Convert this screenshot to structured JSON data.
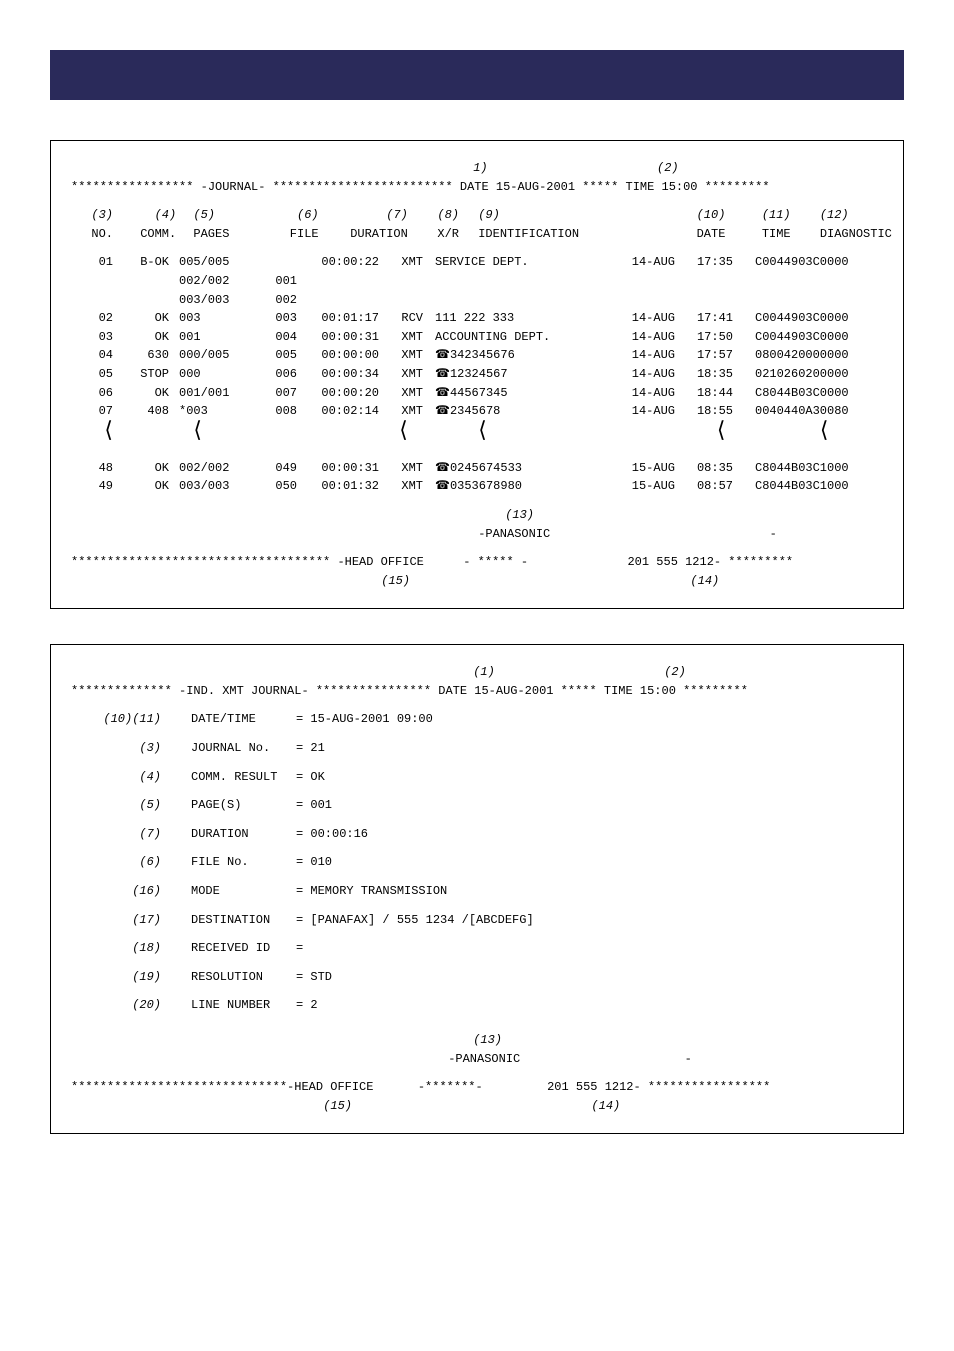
{
  "topbar_color": "#2a2a5a",
  "report1": {
    "title_marker": "1)",
    "title_marker2": "(2)",
    "header_line": "***************** -JOURNAL- ************************* DATE 15-AUG-2001 ***** TIME 15:00 *********",
    "col_ref": {
      "no": "(3)",
      "comm": "(4)",
      "pages": "(5)",
      "file": "(6)",
      "dur": "(7)",
      "xr": "(8)",
      "id": "(9)",
      "date": "(10)",
      "time": "(11)",
      "diag": "(12)"
    },
    "col_head": {
      "no": "NO.",
      "comm": "COMM.",
      "pages": "PAGES",
      "file": "FILE",
      "dur": "DURATION",
      "xr": "X/R",
      "id": "IDENTIFICATION",
      "date": "DATE",
      "time": "TIME",
      "diag": "DIAGNOSTIC"
    },
    "rows_a": [
      {
        "no": "01",
        "comm": "B-OK",
        "pages": "005/005",
        "file": "",
        "dur": "00:00:22",
        "xr": "XMT",
        "id_icon": "",
        "id": "SERVICE DEPT.",
        "date": "14-AUG",
        "time": "17:35",
        "diag": "C0044903C0000"
      },
      {
        "no": "",
        "comm": "",
        "pages": "002/002",
        "file": "001",
        "dur": "",
        "xr": "",
        "id_icon": "",
        "id": "",
        "date": "",
        "time": "",
        "diag": ""
      },
      {
        "no": "",
        "comm": "",
        "pages": "003/003",
        "file": "002",
        "dur": "",
        "xr": "",
        "id_icon": "",
        "id": "",
        "date": "",
        "time": "",
        "diag": ""
      },
      {
        "no": "02",
        "comm": "OK",
        "pages": "003",
        "file": "003",
        "dur": "00:01:17",
        "xr": "RCV",
        "id_icon": "",
        "id": "111 222 333",
        "date": "14-AUG",
        "time": "17:41",
        "diag": "C0044903C0000"
      },
      {
        "no": "03",
        "comm": "OK",
        "pages": "001",
        "file": "004",
        "dur": "00:00:31",
        "xr": "XMT",
        "id_icon": "",
        "id": "ACCOUNTING DEPT.",
        "date": "14-AUG",
        "time": "17:50",
        "diag": "C0044903C0000"
      },
      {
        "no": "04",
        "comm": "630",
        "pages": "000/005",
        "file": "005",
        "dur": "00:00:00",
        "xr": "XMT",
        "id_icon": "☎",
        "id": "342345676",
        "date": "14-AUG",
        "time": "17:57",
        "diag": "0800420000000"
      },
      {
        "no": "05",
        "comm": "STOP",
        "pages": "000",
        "file": "006",
        "dur": "00:00:34",
        "xr": "XMT",
        "id_icon": "☎",
        "id": "12324567",
        "date": "14-AUG",
        "time": "18:35",
        "diag": "0210260200000"
      },
      {
        "no": "06",
        "comm": "OK",
        "pages": "001/001",
        "file": "007",
        "dur": "00:00:20",
        "xr": "XMT",
        "id_icon": "☎",
        "id": "44567345",
        "date": "14-AUG",
        "time": "18:44",
        "diag": "C8044B03C0000"
      },
      {
        "no": "07",
        "comm": "408",
        "pages": "*003",
        "file": "008",
        "dur": "00:02:14",
        "xr": "XMT",
        "id_icon": "☎",
        "id": "2345678",
        "date": "14-AUG",
        "time": "18:55",
        "diag": "0040440A30080"
      }
    ],
    "rows_b": [
      {
        "no": "48",
        "comm": "OK",
        "pages": "002/002",
        "file": "049",
        "dur": "00:00:31",
        "xr": "XMT",
        "id_icon": "☎",
        "id": "0245674533",
        "date": "15-AUG",
        "time": "08:35",
        "diag": "C8044B03C1000"
      },
      {
        "no": "49",
        "comm": "OK",
        "pages": "003/003",
        "file": "050",
        "dur": "00:01:32",
        "xr": "XMT",
        "id_icon": "☎",
        "id": "0353678980",
        "date": "15-AUG",
        "time": "08:57",
        "diag": "C8044B03C1000"
      }
    ],
    "footer_ref": "(13)",
    "footer_brand": "-PANASONIC",
    "footer_dash": "-",
    "footer_line_left": "************************************ -HEAD OFFICE",
    "footer_line_mid": "- ***** -",
    "footer_line_right": "201 555 1212- *********",
    "footer_ref_15": "(15)",
    "footer_ref_14": "(14)"
  },
  "report2": {
    "title_marker": "(1)",
    "title_marker2": "(2)",
    "header_line": "************** -IND. XMT JOURNAL-  **************** DATE 15-AUG-2001 ***** TIME 15:00 *********",
    "lines": [
      {
        "ref": "(10)(11)",
        "name": "DATE/TIME",
        "val": "= 15-AUG-2001 09:00"
      },
      {
        "ref": "(3)",
        "name": "JOURNAL No.",
        "val": "= 21"
      },
      {
        "ref": "(4)",
        "name": "COMM. RESULT",
        "val": "= OK"
      },
      {
        "ref": "(5)",
        "name": "PAGE(S)",
        "val": "= 001"
      },
      {
        "ref": "(7)",
        "name": "DURATION",
        "val": "= 00:00:16"
      },
      {
        "ref": "(6)",
        "name": "FILE No.",
        "val": "= 010"
      },
      {
        "ref": "(16)",
        "name": "MODE",
        "val": "= MEMORY TRANSMISSION"
      },
      {
        "ref": "(17)",
        "name": "DESTINATION",
        "val": "= [PANAFAX] / 555 1234 /[ABCDEFG]"
      },
      {
        "ref": "(18)",
        "name": "RECEIVED ID",
        "val": "="
      },
      {
        "ref": "(19)",
        "name": "RESOLUTION",
        "val": "= STD"
      },
      {
        "ref": "(20)",
        "name": "LINE NUMBER",
        "val": "= 2"
      }
    ],
    "footer_ref": "(13)",
    "footer_brand": "-PANASONIC",
    "footer_dash": "-",
    "footer_line_left": "******************************-HEAD OFFICE",
    "footer_line_mid": "-*******-",
    "footer_line_right": "201 555 1212- *****************",
    "footer_ref_15": "(15)",
    "footer_ref_14": "(14)"
  }
}
